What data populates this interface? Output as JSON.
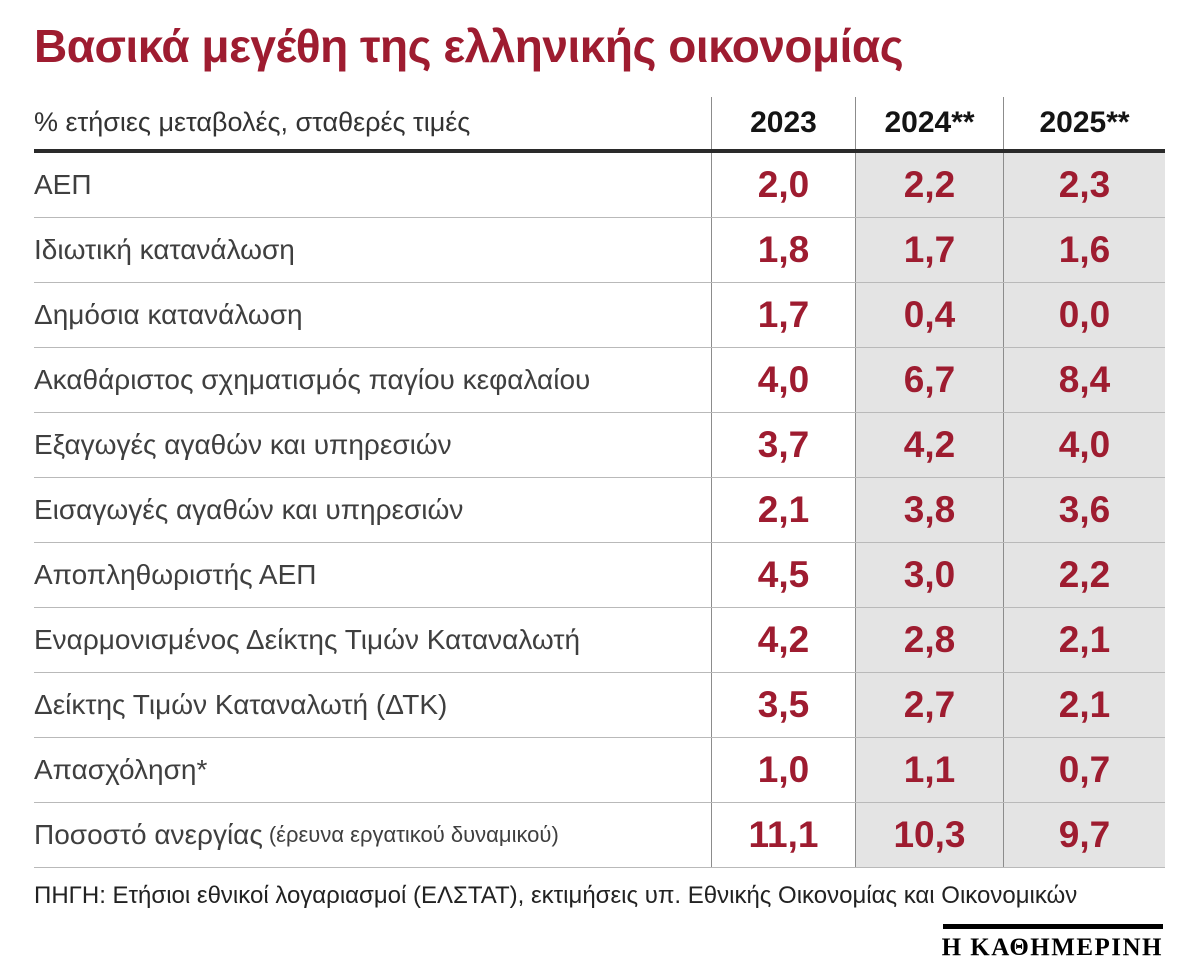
{
  "title": "Βασικά μεγέθη της ελληνικής οικονομίας",
  "table": {
    "unit_label": "% ετήσιες μεταβολές, σταθερές τιμές",
    "columns": [
      "2023",
      "2024**",
      "2025**"
    ]
  },
  "source": "ΠΗΓΗ: Ετήσιοι εθνικοί λογαριασμοί (ΕΛΣΤΑΤ), εκτιμήσεις υπ. Εθνικής Οικονομίας και Οικονομικών",
  "brand": "Η ΚΑΘΗΜΕΡΙΝΗ",
  "colors": {
    "accent_maroon": "#9e1c30",
    "column_shade": "#e4e4e4",
    "rule_dark": "#2a2a2a",
    "rule_light": "#b9b9b9",
    "vertical_rule": "#8c8c8c"
  },
  "chart_data": {
    "type": "table",
    "title": "Βασικά μεγέθη της ελληνικής οικονομίας",
    "unit_note": "% ετήσιες μεταβολές, σταθερές τιμές",
    "columns": [
      "2023",
      "2024**",
      "2025**"
    ],
    "decimal_separator": ",",
    "shaded_columns": [
      "2024**",
      "2025**"
    ],
    "rows": [
      {
        "label": "ΑΕΠ",
        "values": [
          2.0,
          2.2,
          2.3
        ]
      },
      {
        "label": "Ιδιωτική κατανάλωση",
        "values": [
          1.8,
          1.7,
          1.6
        ]
      },
      {
        "label": "Δημόσια κατανάλωση",
        "values": [
          1.7,
          0.4,
          0.0
        ]
      },
      {
        "label": "Ακαθάριστος σχηματισμός παγίου κεφαλαίου",
        "values": [
          4.0,
          6.7,
          8.4
        ]
      },
      {
        "label": "Εξαγωγές αγαθών και υπηρεσιών",
        "values": [
          3.7,
          4.2,
          4.0
        ]
      },
      {
        "label": "Εισαγωγές αγαθών και υπηρεσιών",
        "values": [
          2.1,
          3.8,
          3.6
        ]
      },
      {
        "label": "Αποπληθωριστής ΑΕΠ",
        "values": [
          4.5,
          3.0,
          2.2
        ]
      },
      {
        "label": "Εναρμονισμένος Δείκτης Τιμών Καταναλωτή",
        "values": [
          4.2,
          2.8,
          2.1
        ]
      },
      {
        "label": "Δείκτης Τιμών Καταναλωτή (ΔΤΚ)",
        "values": [
          3.5,
          2.7,
          2.1
        ]
      },
      {
        "label": "Απασχόληση*",
        "values": [
          1.0,
          1.1,
          0.7
        ]
      },
      {
        "label": "Ποσοστό ανεργίας",
        "note": "(έρευνα εργατικού δυναμικού)",
        "values": [
          11.1,
          10.3,
          9.7
        ]
      }
    ],
    "source": "ΠΗΓΗ: Ετήσιοι εθνικοί λογαριασμοί (ΕΛΣΤΑΤ), εκτιμήσεις υπ. Εθνικής Οικονομίας και Οικονομικών"
  }
}
